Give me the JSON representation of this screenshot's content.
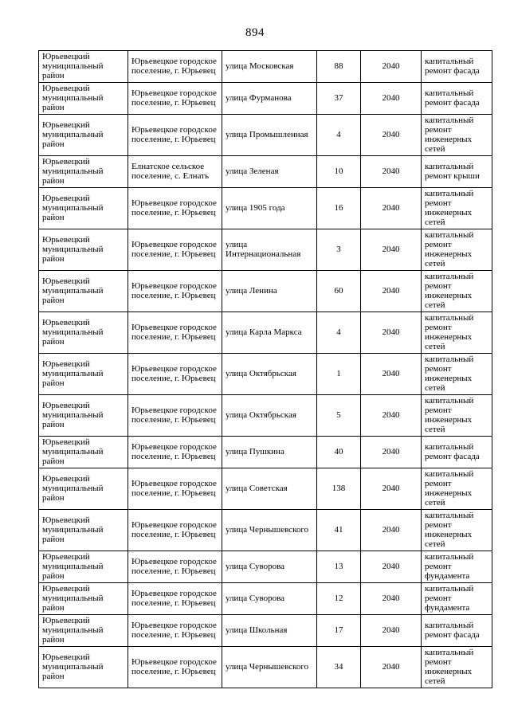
{
  "page": {
    "number": "894"
  },
  "table": {
    "rows": [
      {
        "district": "Юрьевецкий муниципальный район",
        "settlement": "Юрьевецкое городское поселение, г. Юрьевец",
        "street": "улица Московская",
        "house_number": "88",
        "year": "2040",
        "work_type": "капитальный ремонт фасада"
      },
      {
        "district": "Юрьевецкий муниципальный район",
        "settlement": "Юрьевецкое городское поселение, г. Юрьевец",
        "street": "улица Фурманова",
        "house_number": "37",
        "year": "2040",
        "work_type": "капитальный ремонт фасада"
      },
      {
        "district": "Юрьевецкий муниципальный район",
        "settlement": "Юрьевецкое городское поселение, г. Юрьевец",
        "street": "улица Промышленная",
        "house_number": "4",
        "year": "2040",
        "work_type": "капитальный ремонт инженерных сетей"
      },
      {
        "district": "Юрьевецкий муниципальный район",
        "settlement": "Елнатское сельское поселение, с. Елнать",
        "street": "улица Зеленая",
        "house_number": "10",
        "year": "2040",
        "work_type": "капитальный ремонт крыши"
      },
      {
        "district": "Юрьевецкий муниципальный район",
        "settlement": "Юрьевецкое городское поселение, г. Юрьевец",
        "street": "улица 1905 года",
        "house_number": "16",
        "year": "2040",
        "work_type": "капитальный ремонт инженерных сетей"
      },
      {
        "district": "Юрьевецкий муниципальный район",
        "settlement": "Юрьевецкое городское поселение, г. Юрьевец",
        "street": "улица Интернациональная",
        "house_number": "3",
        "year": "2040",
        "work_type": "капитальный ремонт инженерных сетей"
      },
      {
        "district": "Юрьевецкий муниципальный район",
        "settlement": "Юрьевецкое городское поселение, г. Юрьевец",
        "street": "улица Ленина",
        "house_number": "60",
        "year": "2040",
        "work_type": "капитальный ремонт инженерных сетей"
      },
      {
        "district": "Юрьевецкий муниципальный район",
        "settlement": "Юрьевецкое городское поселение, г. Юрьевец",
        "street": "улица Карла Маркса",
        "house_number": "4",
        "year": "2040",
        "work_type": "капитальный ремонт инженерных сетей"
      },
      {
        "district": "Юрьевецкий муниципальный район",
        "settlement": "Юрьевецкое городское поселение, г. Юрьевец",
        "street": "улица Октябрьская",
        "house_number": "1",
        "year": "2040",
        "work_type": "капитальный ремонт инженерных сетей"
      },
      {
        "district": "Юрьевецкий муниципальный район",
        "settlement": "Юрьевецкое городское поселение, г. Юрьевец",
        "street": "улица Октябрьская",
        "house_number": "5",
        "year": "2040",
        "work_type": "капитальный ремонт инженерных сетей"
      },
      {
        "district": "Юрьевецкий муниципальный район",
        "settlement": "Юрьевецкое городское поселение, г. Юрьевец",
        "street": "улица Пушкина",
        "house_number": "40",
        "year": "2040",
        "work_type": "капитальный ремонт фасада"
      },
      {
        "district": "Юрьевецкий муниципальный район",
        "settlement": "Юрьевецкое городское поселение, г. Юрьевец",
        "street": "улица Советская",
        "house_number": "138",
        "year": "2040",
        "work_type": "капитальный ремонт инженерных сетей"
      },
      {
        "district": "Юрьевецкий муниципальный район",
        "settlement": "Юрьевецкое городское поселение, г. Юрьевец",
        "street": "улица Чернышевского",
        "house_number": "41",
        "year": "2040",
        "work_type": "капитальный ремонт инженерных сетей"
      },
      {
        "district": "Юрьевецкий муниципальный район",
        "settlement": "Юрьевецкое городское поселение, г. Юрьевец",
        "street": "улица Суворова",
        "house_number": "13",
        "year": "2040",
        "work_type": "капитальный ремонт фундамента"
      },
      {
        "district": "Юрьевецкий муниципальный район",
        "settlement": "Юрьевецкое городское поселение, г. Юрьевец",
        "street": "улица Суворова",
        "house_number": "12",
        "year": "2040",
        "work_type": "капитальный ремонт фундамента"
      },
      {
        "district": "Юрьевецкий муниципальный район",
        "settlement": "Юрьевецкое городское поселение, г. Юрьевец",
        "street": "улица Школьная",
        "house_number": "17",
        "year": "2040",
        "work_type": "капитальный ремонт фасада"
      },
      {
        "district": "Юрьевецкий муниципальный район",
        "settlement": "Юрьевецкое городское поселение, г. Юрьевец",
        "street": "улица Чернышевского",
        "house_number": "34",
        "year": "2040",
        "work_type": "капитальный ремонт инженерных сетей"
      }
    ]
  }
}
